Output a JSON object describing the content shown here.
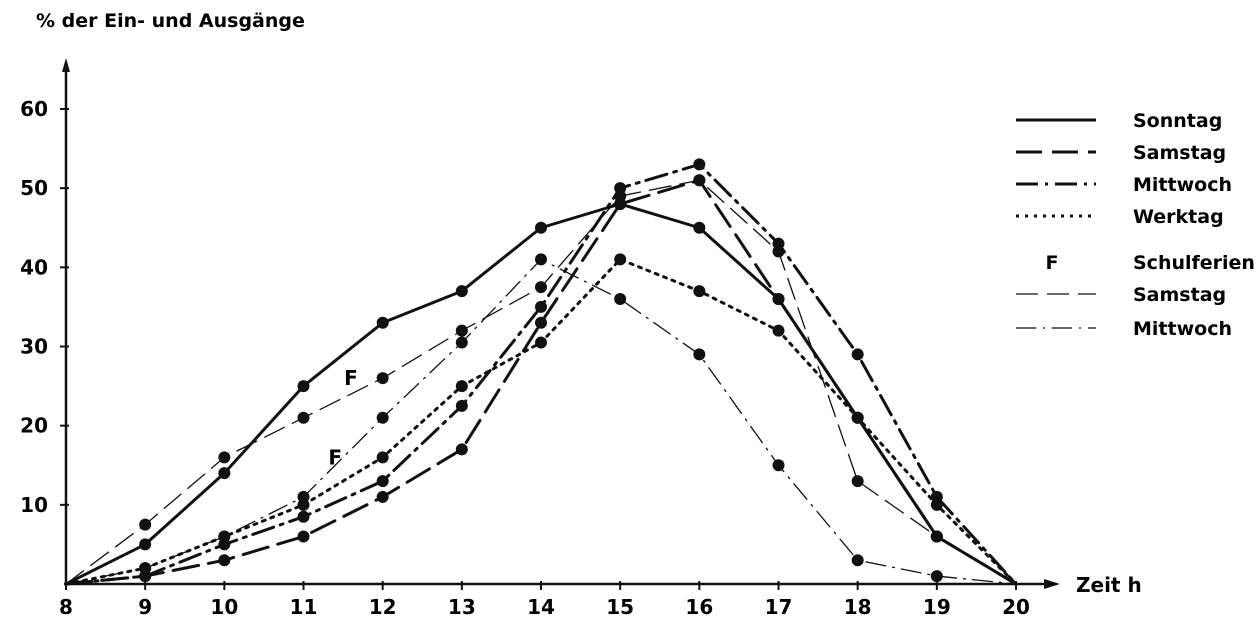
{
  "chart_data": {
    "type": "line",
    "ylabel": "% der Ein- und Ausgänge",
    "xlabel": "Zeit h",
    "x": [
      8,
      9,
      10,
      11,
      12,
      13,
      14,
      15,
      16,
      17,
      18,
      19,
      20
    ],
    "xlim": [
      8,
      20
    ],
    "ylim": [
      0,
      60
    ],
    "y_ticks": [
      10,
      20,
      30,
      40,
      50,
      60
    ],
    "grid": false,
    "legend_position": "top-right",
    "legend_group_label": "F",
    "legend_group_title": "Schulferien",
    "annotations": [
      {
        "text": "F",
        "x": 11.6,
        "y": 26
      },
      {
        "text": "F",
        "x": 11.4,
        "y": 16
      }
    ],
    "series": [
      {
        "name": "Sonntag",
        "style": "solid",
        "markers": true,
        "values": [
          0,
          5,
          14,
          25,
          33,
          37,
          45,
          48,
          45,
          36,
          21,
          6,
          0
        ]
      },
      {
        "name": "Samstag",
        "style": "long-dash",
        "markers": true,
        "values": [
          0,
          1,
          3,
          6,
          11,
          17,
          33,
          48,
          51,
          36,
          21,
          6,
          0
        ]
      },
      {
        "name": "Mittwoch",
        "style": "dash-dot",
        "markers": true,
        "values": [
          0,
          1,
          5,
          8.5,
          13,
          22.5,
          35,
          50,
          53,
          43,
          29,
          11,
          0
        ]
      },
      {
        "name": "Werktag",
        "style": "dotted",
        "markers": true,
        "values": [
          0,
          2,
          6,
          10,
          16,
          25,
          30.5,
          41,
          37,
          32,
          21,
          10,
          0
        ]
      },
      {
        "name": "Samstag",
        "style": "thin-dash",
        "group": "Schulferien",
        "markers": true,
        "values": [
          0,
          7.5,
          16,
          21,
          26,
          32,
          37.5,
          49,
          51,
          42,
          13,
          6,
          0
        ]
      },
      {
        "name": "Mittwoch",
        "style": "thin-dash-dot",
        "group": "Schulferien",
        "markers": true,
        "values": [
          0,
          2,
          6,
          11,
          21,
          30.5,
          41,
          36,
          29,
          15,
          3,
          1,
          0
        ]
      }
    ]
  }
}
